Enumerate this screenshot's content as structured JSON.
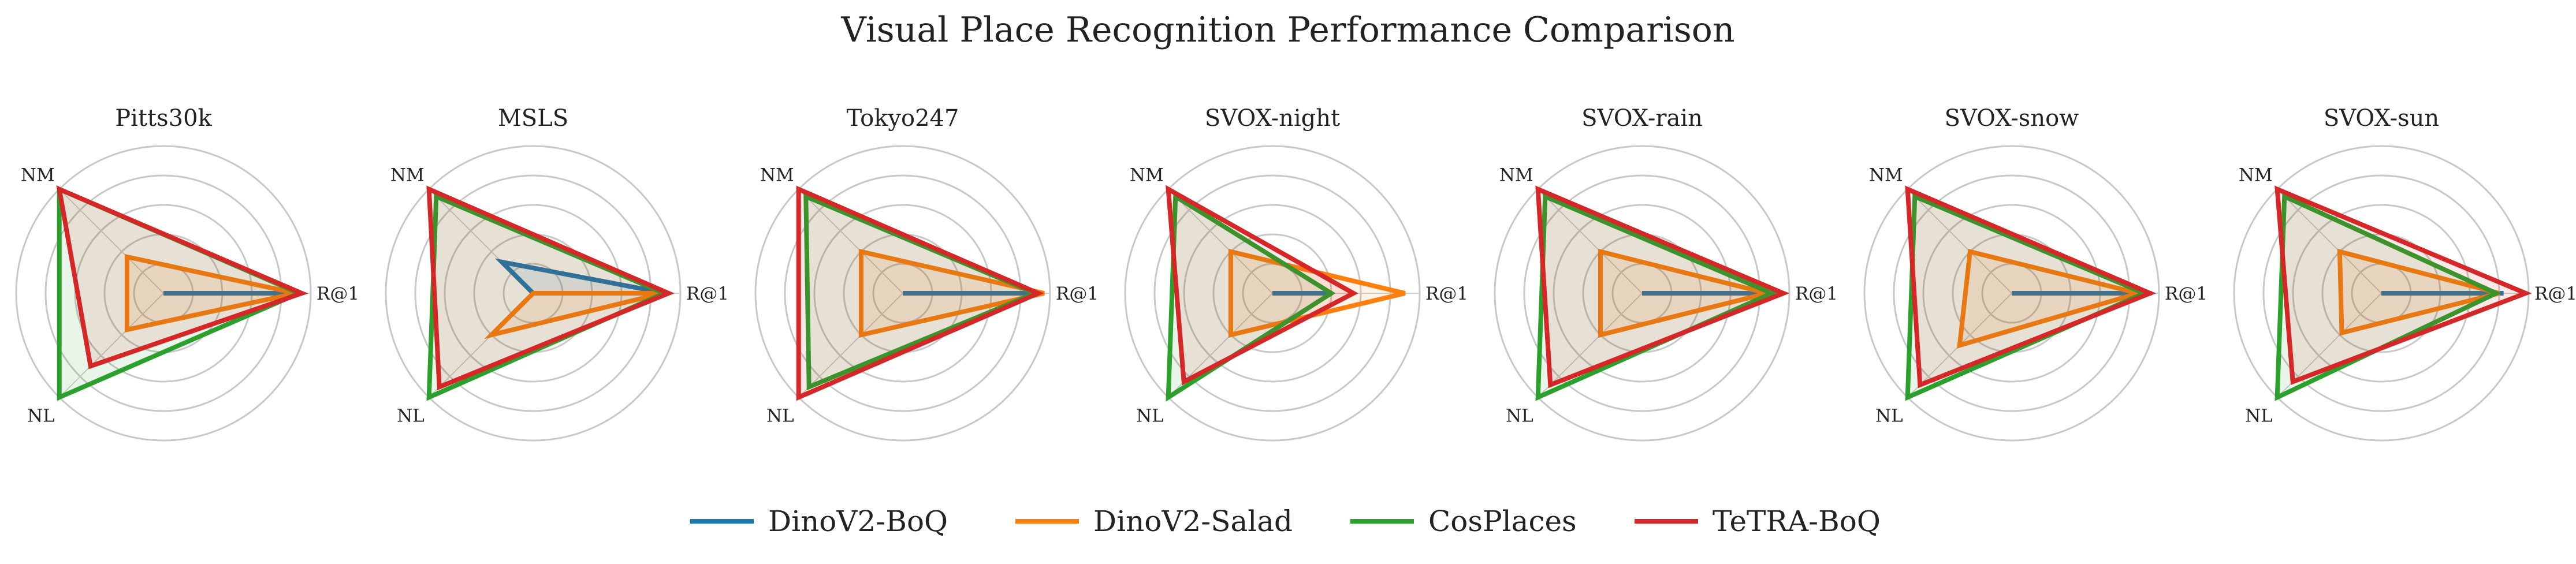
{
  "chart_data": {
    "type": "radar",
    "title": "Visual Place Recognition Performance Comparison",
    "axes": [
      "R@1",
      "NM",
      "NL"
    ],
    "rlim": [
      0,
      1.0
    ],
    "grid": true,
    "legend_position": "bottom-center",
    "series": [
      {
        "name": "DinoV2-BoQ",
        "color": "#1f77b4"
      },
      {
        "name": "DinoV2-Salad",
        "color": "#ff7f0e"
      },
      {
        "name": "CosPlaces",
        "color": "#2ca02c"
      },
      {
        "name": "TeTRA-BoQ",
        "color": "#d62728"
      }
    ],
    "panels": [
      {
        "title": "Pitts30k",
        "values": {
          "DinoV2-BoQ": [
            0.93,
            0.0,
            0.0
          ],
          "DinoV2-Salad": [
            0.9,
            0.35,
            0.35
          ],
          "CosPlaces": [
            0.92,
            1.0,
            1.0
          ],
          "TeTRA-BoQ": [
            0.94,
            1.0,
            0.7
          ]
        }
      },
      {
        "title": "MSLS",
        "values": {
          "DinoV2-BoQ": [
            0.9,
            0.3,
            0.0
          ],
          "DinoV2-Salad": [
            0.88,
            0.0,
            0.4
          ],
          "CosPlaces": [
            0.89,
            0.93,
            1.0
          ],
          "TeTRA-BoQ": [
            0.92,
            1.0,
            0.9
          ]
        }
      },
      {
        "title": "Tokyo247",
        "values": {
          "DinoV2-BoQ": [
            0.93,
            0.0,
            0.0
          ],
          "DinoV2-Salad": [
            0.96,
            0.4,
            0.4
          ],
          "CosPlaces": [
            0.9,
            0.93,
            0.9
          ],
          "TeTRA-BoQ": [
            0.92,
            1.0,
            1.0
          ]
        }
      },
      {
        "title": "SVOX-night",
        "values": {
          "DinoV2-BoQ": [
            0.4,
            0.0,
            0.0
          ],
          "DinoV2-Salad": [
            0.9,
            0.4,
            0.4
          ],
          "CosPlaces": [
            0.4,
            0.93,
            1.0
          ],
          "TeTRA-BoQ": [
            0.55,
            1.0,
            0.85
          ]
        }
      },
      {
        "title": "SVOX-rain",
        "values": {
          "DinoV2-BoQ": [
            0.95,
            0.0,
            0.0
          ],
          "DinoV2-Salad": [
            0.85,
            0.4,
            0.4
          ],
          "CosPlaces": [
            0.88,
            0.93,
            1.0
          ],
          "TeTRA-BoQ": [
            0.96,
            1.0,
            0.88
          ]
        }
      },
      {
        "title": "SVOX-snow",
        "values": {
          "DinoV2-BoQ": [
            0.95,
            0.0,
            0.0
          ],
          "DinoV2-Salad": [
            0.86,
            0.4,
            0.5
          ],
          "CosPlaces": [
            0.9,
            0.93,
            1.0
          ],
          "TeTRA-BoQ": [
            0.94,
            1.0,
            0.88
          ]
        }
      },
      {
        "title": "SVOX-sun",
        "values": {
          "DinoV2-BoQ": [
            0.83,
            0.0,
            0.0
          ],
          "DinoV2-Salad": [
            0.8,
            0.4,
            0.38
          ],
          "CosPlaces": [
            0.78,
            0.93,
            1.0
          ],
          "TeTRA-BoQ": [
            0.98,
            1.0,
            0.85
          ]
        }
      }
    ]
  }
}
